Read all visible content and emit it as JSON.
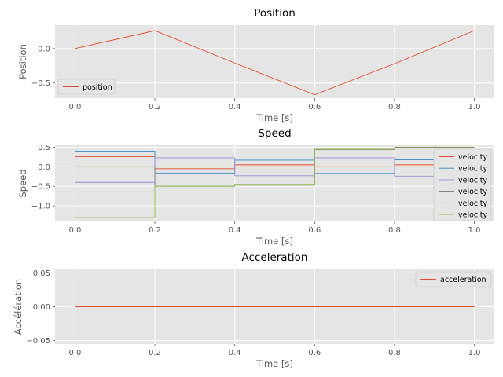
{
  "chart_data": [
    {
      "type": "line",
      "title": "Position",
      "xlabel": "Time [s]",
      "ylabel": "Position",
      "xlim": [
        -0.05,
        1.05
      ],
      "ylim": [
        -0.72,
        0.34
      ],
      "xticks": [
        0.0,
        0.2,
        0.4,
        0.6,
        0.8,
        1.0
      ],
      "xtick_labels": [
        "0.0",
        "0.2",
        "0.4",
        "0.6",
        "0.8",
        "1.0"
      ],
      "yticks": [
        0.0,
        -0.5
      ],
      "ytick_labels": [
        "0.0",
        "−0.5"
      ],
      "grid": true,
      "legend": "lower-left",
      "step": false,
      "series": [
        {
          "name": "position",
          "color": "#E24A33",
          "x": [
            0.0,
            0.2,
            0.4,
            0.6,
            0.8,
            1.0
          ],
          "y": [
            0.0,
            0.26,
            -0.21,
            -0.67,
            -0.22,
            0.26
          ]
        }
      ]
    },
    {
      "type": "line",
      "title": "Speed",
      "xlabel": "Time [s]",
      "ylabel": "Speed",
      "xlim": [
        -0.05,
        1.05
      ],
      "ylim": [
        -1.4,
        0.55
      ],
      "xticks": [
        0.0,
        0.2,
        0.4,
        0.6,
        0.8,
        1.0
      ],
      "xtick_labels": [
        "0.0",
        "0.2",
        "0.4",
        "0.6",
        "0.8",
        "1.0"
      ],
      "yticks": [
        0.5,
        0.0,
        -0.5,
        -1.0
      ],
      "ytick_labels": [
        "0.5",
        "0.0",
        "−0.5",
        "−1.0"
      ],
      "grid": true,
      "legend": "right",
      "step": true,
      "series": [
        {
          "name": "velocity",
          "color": "#E24A33",
          "x": [
            0.0,
            0.2,
            0.4,
            0.6,
            0.8,
            1.0
          ],
          "y": [
            0.26,
            -0.05,
            0.05,
            0.0,
            0.05,
            0.05
          ]
        },
        {
          "name": "velocity",
          "color": "#348ABD",
          "x": [
            0.0,
            0.2,
            0.4,
            0.6,
            0.8,
            1.0
          ],
          "y": [
            0.4,
            -0.16,
            0.17,
            -0.17,
            0.18,
            0.18
          ]
        },
        {
          "name": "velocity",
          "color": "#988ED5",
          "x": [
            0.0,
            0.2,
            0.4,
            0.6,
            0.8,
            1.0
          ],
          "y": [
            -0.4,
            0.23,
            -0.23,
            0.23,
            -0.24,
            -0.24
          ]
        },
        {
          "name": "velocity",
          "color": "#777777",
          "x": [
            0.0,
            0.2,
            0.4,
            0.6,
            0.8,
            1.0
          ],
          "y": [
            0.0,
            -0.5,
            -0.47,
            0.44,
            0.5,
            0.5
          ]
        },
        {
          "name": "velocity",
          "color": "#FBC15E",
          "x": [
            0.0,
            0.2,
            0.4,
            0.6,
            0.8,
            1.0
          ],
          "y": [
            0.0,
            0.0,
            0.0,
            0.0,
            0.0,
            0.0
          ]
        },
        {
          "name": "velocity",
          "color": "#8EBA42",
          "x": [
            0.0,
            0.2,
            0.4,
            0.6,
            0.8,
            1.0
          ],
          "y": [
            -1.3,
            -0.5,
            -0.45,
            0.45,
            0.49,
            0.49
          ]
        }
      ]
    },
    {
      "type": "line",
      "title": "Acceleration",
      "xlabel": "Time [s]",
      "ylabel": "Accélération",
      "xlim": [
        -0.05,
        1.05
      ],
      "ylim": [
        -0.055,
        0.055
      ],
      "xticks": [
        0.0,
        0.2,
        0.4,
        0.6,
        0.8,
        1.0
      ],
      "xtick_labels": [
        "0.0",
        "0.2",
        "0.4",
        "0.6",
        "0.8",
        "1.0"
      ],
      "yticks": [
        0.05,
        0.0,
        -0.05
      ],
      "ytick_labels": [
        "0.05",
        "0.00",
        "−0.05"
      ],
      "grid": true,
      "legend": "upper-right",
      "step": false,
      "series": [
        {
          "name": "acceleration",
          "color": "#E24A33",
          "x": [
            0.0,
            1.0
          ],
          "y": [
            0.0,
            0.0
          ]
        }
      ]
    }
  ]
}
